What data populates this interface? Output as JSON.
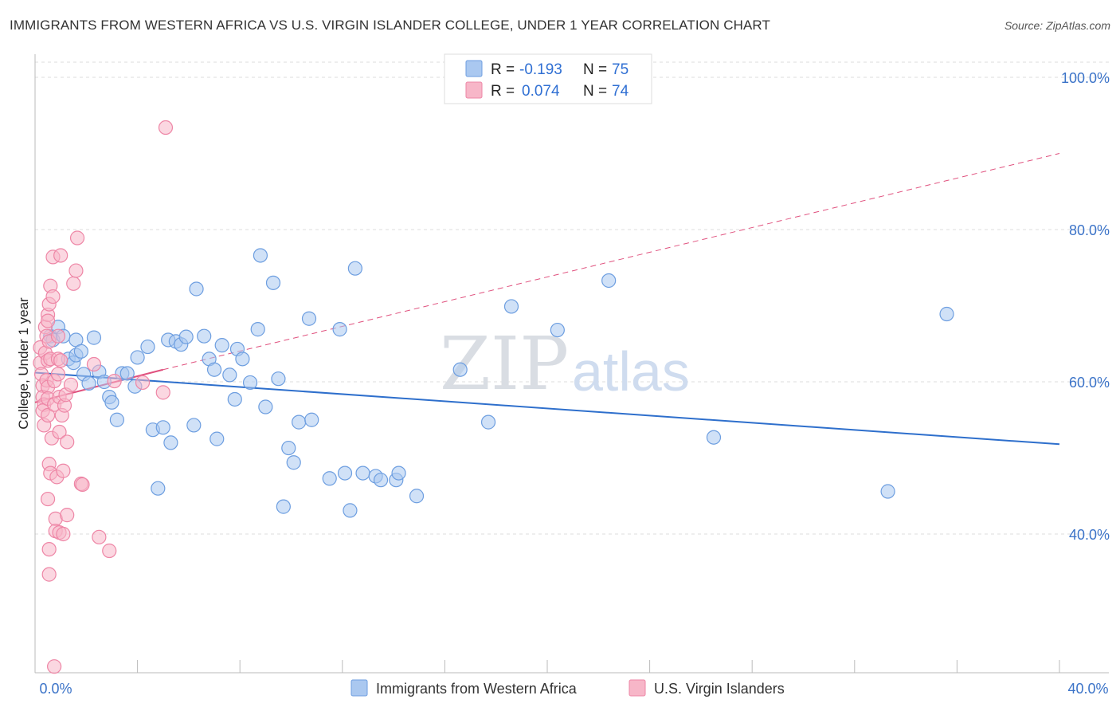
{
  "title": "IMMIGRANTS FROM WESTERN AFRICA VS U.S. VIRGIN ISLANDER COLLEGE, UNDER 1 YEAR CORRELATION CHART",
  "source": "Source: ZipAtlas.com",
  "watermark": {
    "zip": "ZIP",
    "atlas": "atlas"
  },
  "colors": {
    "blue_fill": "#aac8f0",
    "blue_stroke": "#6d9ee0",
    "blue_line": "#2e6fcc",
    "pink_fill": "#f7b6c8",
    "pink_stroke": "#ee86a6",
    "pink_line": "#e0517e",
    "grid": "#dddddd",
    "axis_text": "#3b73c8"
  },
  "legend": {
    "rows": [
      {
        "r_label": "R =",
        "r_value": "-0.193",
        "n_label": "N =",
        "n_value": "75"
      },
      {
        "r_label": "R =",
        "r_value": "0.074",
        "n_label": "N =",
        "n_value": "74"
      }
    ]
  },
  "chart_data": {
    "type": "scatter",
    "title": "IMMIGRANTS FROM WESTERN AFRICA VS U.S. VIRGIN ISLANDER COLLEGE, UNDER 1 YEAR CORRELATION CHART",
    "xlabel": "",
    "ylabel": "College, Under 1 year",
    "xlim": [
      0,
      40
    ],
    "ylim": [
      20,
      102
    ],
    "x_tick_labels": [
      {
        "value": 0,
        "label": "0.0%"
      },
      {
        "value": 40,
        "label": "40.0%"
      }
    ],
    "y_tick_labels": [
      {
        "value": 100,
        "label": "100.0%"
      },
      {
        "value": 80,
        "label": "80.0%"
      },
      {
        "value": 60,
        "label": "60.0%"
      },
      {
        "value": 40,
        "label": "40.0%"
      }
    ],
    "grid": true,
    "legend_position": "top-center",
    "series": [
      {
        "name": "Immigrants from Western Africa",
        "color": "blue",
        "trend": {
          "x": [
            0,
            40
          ],
          "y": [
            61.2,
            51.8
          ],
          "style": "solid"
        },
        "points": [
          [
            0.6,
            66
          ],
          [
            0.9,
            67.2
          ],
          [
            0.7,
            65.5
          ],
          [
            1.1,
            66
          ],
          [
            1.3,
            63
          ],
          [
            1.5,
            62.5
          ],
          [
            1.6,
            63.5
          ],
          [
            1.6,
            65.5
          ],
          [
            1.8,
            64
          ],
          [
            1.9,
            61
          ],
          [
            2.1,
            59.8
          ],
          [
            2.3,
            65.8
          ],
          [
            2.5,
            61.3
          ],
          [
            2.7,
            60
          ],
          [
            2.9,
            58
          ],
          [
            3.0,
            57.3
          ],
          [
            3.2,
            55
          ],
          [
            3.4,
            61.1
          ],
          [
            3.6,
            61.1
          ],
          [
            3.9,
            59.4
          ],
          [
            4.0,
            63.2
          ],
          [
            4.4,
            64.6
          ],
          [
            4.6,
            53.7
          ],
          [
            4.8,
            46
          ],
          [
            5.0,
            54
          ],
          [
            5.2,
            65.5
          ],
          [
            5.3,
            52
          ],
          [
            5.5,
            65.3
          ],
          [
            5.7,
            64.9
          ],
          [
            5.9,
            65.9
          ],
          [
            6.2,
            54.3
          ],
          [
            6.3,
            72.2
          ],
          [
            6.6,
            66
          ],
          [
            6.8,
            63
          ],
          [
            7.0,
            61.6
          ],
          [
            7.1,
            52.5
          ],
          [
            7.3,
            64.8
          ],
          [
            7.6,
            60.9
          ],
          [
            7.8,
            57.7
          ],
          [
            7.9,
            64.3
          ],
          [
            8.1,
            63
          ],
          [
            8.4,
            59.9
          ],
          [
            8.7,
            66.9
          ],
          [
            8.8,
            76.6
          ],
          [
            9.0,
            56.7
          ],
          [
            9.3,
            73
          ],
          [
            9.5,
            60.4
          ],
          [
            9.7,
            43.6
          ],
          [
            9.9,
            51.3
          ],
          [
            10.1,
            49.4
          ],
          [
            10.3,
            54.7
          ],
          [
            10.7,
            68.3
          ],
          [
            10.8,
            55
          ],
          [
            11.5,
            47.3
          ],
          [
            11.9,
            66.9
          ],
          [
            12.1,
            48
          ],
          [
            12.3,
            43.1
          ],
          [
            12.5,
            74.9
          ],
          [
            12.8,
            48
          ],
          [
            13.3,
            47.6
          ],
          [
            13.5,
            47.1
          ],
          [
            14.1,
            47.1
          ],
          [
            14.2,
            48
          ],
          [
            14.9,
            45
          ],
          [
            16.6,
            61.6
          ],
          [
            17.7,
            54.7
          ],
          [
            18.6,
            69.9
          ],
          [
            20.4,
            66.8
          ],
          [
            22.4,
            73.3
          ],
          [
            26.5,
            52.7
          ],
          [
            33.3,
            45.6
          ],
          [
            35.6,
            68.9
          ]
        ]
      },
      {
        "name": "U.S. Virgin Islanders",
        "color": "pink",
        "trend": {
          "x": [
            0,
            5.0
          ],
          "y": [
            57.3,
            61.6
          ],
          "style": "solid",
          "extended": {
            "x": [
              5.0,
              40
            ],
            "y": [
              61.6,
              90.0
            ],
            "style": "dashed"
          }
        },
        "points": [
          [
            0.2,
            64.5
          ],
          [
            0.2,
            62.5
          ],
          [
            0.25,
            61
          ],
          [
            0.3,
            59.5
          ],
          [
            0.3,
            58
          ],
          [
            0.35,
            57
          ],
          [
            0.3,
            56.2
          ],
          [
            0.35,
            54.3
          ],
          [
            0.4,
            67.2
          ],
          [
            0.45,
            66
          ],
          [
            0.4,
            63.8
          ],
          [
            0.5,
            62.8
          ],
          [
            0.45,
            60.2
          ],
          [
            0.5,
            59.3
          ],
          [
            0.5,
            57.8
          ],
          [
            0.5,
            55.6
          ],
          [
            0.5,
            68.8
          ],
          [
            0.5,
            68
          ],
          [
            0.55,
            70.2
          ],
          [
            0.55,
            65.3
          ],
          [
            0.6,
            63
          ],
          [
            0.6,
            72.6
          ],
          [
            0.55,
            49.2
          ],
          [
            0.5,
            44.6
          ],
          [
            0.55,
            38
          ],
          [
            0.55,
            34.7
          ],
          [
            0.6,
            48
          ],
          [
            0.65,
            52.6
          ],
          [
            0.7,
            76.4
          ],
          [
            0.7,
            71.2
          ],
          [
            0.75,
            60.1
          ],
          [
            0.75,
            57
          ],
          [
            0.8,
            42
          ],
          [
            0.8,
            40.4
          ],
          [
            0.75,
            22.6
          ],
          [
            0.85,
            47.5
          ],
          [
            0.9,
            66
          ],
          [
            0.9,
            63
          ],
          [
            0.9,
            61
          ],
          [
            0.95,
            58
          ],
          [
            0.95,
            53.4
          ],
          [
            0.95,
            40.2
          ],
          [
            1.0,
            76.6
          ],
          [
            1.0,
            62.8
          ],
          [
            1.05,
            55.6
          ],
          [
            1.1,
            48.3
          ],
          [
            1.1,
            40
          ],
          [
            1.15,
            56.9
          ],
          [
            1.2,
            58.3
          ],
          [
            1.25,
            52.1
          ],
          [
            1.25,
            42.5
          ],
          [
            1.4,
            59.6
          ],
          [
            1.5,
            72.9
          ],
          [
            1.6,
            74.6
          ],
          [
            1.65,
            78.9
          ],
          [
            1.8,
            46.6
          ],
          [
            1.85,
            46.5
          ],
          [
            2.3,
            62.3
          ],
          [
            2.5,
            39.6
          ],
          [
            2.9,
            37.8
          ],
          [
            3.1,
            60.1
          ],
          [
            4.2,
            59.9
          ],
          [
            5.0,
            58.6
          ],
          [
            5.1,
            93.4
          ]
        ]
      }
    ]
  },
  "bottom_legend": [
    {
      "label": "Immigrants from Western Africa",
      "color": "blue"
    },
    {
      "label": "U.S. Virgin Islanders",
      "color": "pink"
    }
  ]
}
